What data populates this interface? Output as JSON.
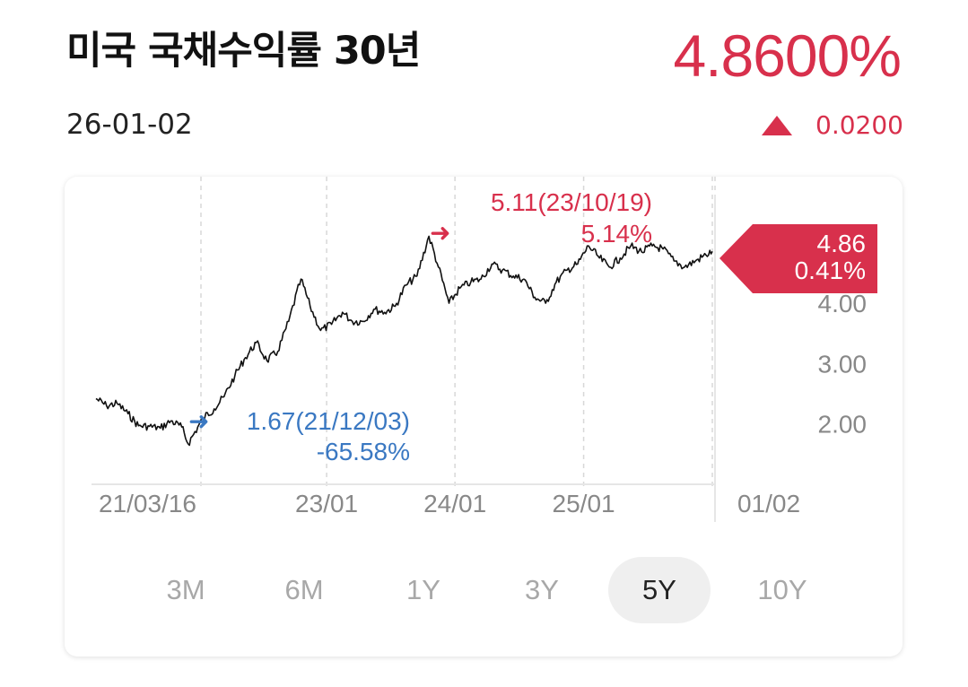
{
  "header": {
    "title": "미국 국채수익률 30년",
    "date": "26-01-02",
    "price": "4.8600%",
    "change": "0.0200",
    "change_direction": "up",
    "accent_color": "#d8304c"
  },
  "chart_data": {
    "type": "line",
    "x_tick_labels": [
      "21/03/16",
      "23/01",
      "24/01",
      "25/01",
      "01/02"
    ],
    "y_tick_labels": [
      "4.00",
      "3.00",
      "2.00"
    ],
    "ylim": [
      1.0,
      5.8
    ],
    "grid": "dashed vertical lines at x ticks",
    "series": [
      {
        "color": "#111111",
        "points": [
          [
            "2021-03-16",
            2.42
          ],
          [
            "2021-04-15",
            2.3
          ],
          [
            "2021-05-15",
            2.34
          ],
          [
            "2021-06-15",
            2.17
          ],
          [
            "2021-07-15",
            1.97
          ],
          [
            "2021-08-15",
            1.96
          ],
          [
            "2021-09-15",
            1.93
          ],
          [
            "2021-10-15",
            2.05
          ],
          [
            "2021-11-15",
            1.95
          ],
          [
            "2021-12-03",
            1.67
          ],
          [
            "2022-01-15",
            2.1
          ],
          [
            "2022-02-15",
            2.25
          ],
          [
            "2022-03-15",
            2.45
          ],
          [
            "2022-04-15",
            2.8
          ],
          [
            "2022-05-15",
            3.1
          ],
          [
            "2022-06-15",
            3.35
          ],
          [
            "2022-07-15",
            3.05
          ],
          [
            "2022-08-15",
            3.2
          ],
          [
            "2022-09-15",
            3.7
          ],
          [
            "2022-10-20",
            4.4
          ],
          [
            "2022-11-15",
            3.95
          ],
          [
            "2022-12-15",
            3.55
          ],
          [
            "2023-01-15",
            3.65
          ],
          [
            "2023-02-15",
            3.85
          ],
          [
            "2023-03-15",
            3.7
          ],
          [
            "2023-04-15",
            3.7
          ],
          [
            "2023-05-15",
            3.9
          ],
          [
            "2023-06-15",
            3.85
          ],
          [
            "2023-07-15",
            3.95
          ],
          [
            "2023-08-15",
            4.3
          ],
          [
            "2023-09-15",
            4.45
          ],
          [
            "2023-10-19",
            5.11
          ],
          [
            "2023-11-15",
            4.6
          ],
          [
            "2023-12-15",
            4.0
          ],
          [
            "2024-01-15",
            4.25
          ],
          [
            "2024-02-15",
            4.35
          ],
          [
            "2024-03-15",
            4.4
          ],
          [
            "2024-04-15",
            4.65
          ],
          [
            "2024-05-15",
            4.55
          ],
          [
            "2024-06-15",
            4.45
          ],
          [
            "2024-07-15",
            4.4
          ],
          [
            "2024-08-15",
            4.1
          ],
          [
            "2024-09-15",
            4.0
          ],
          [
            "2024-10-15",
            4.35
          ],
          [
            "2024-11-15",
            4.55
          ],
          [
            "2024-12-15",
            4.65
          ],
          [
            "2025-01-15",
            4.95
          ],
          [
            "2025-02-15",
            4.75
          ],
          [
            "2025-03-15",
            4.6
          ],
          [
            "2025-04-15",
            4.75
          ],
          [
            "2025-05-15",
            4.95
          ],
          [
            "2025-06-15",
            4.85
          ],
          [
            "2025-07-15",
            4.95
          ],
          [
            "2025-08-15",
            4.9
          ],
          [
            "2025-09-15",
            4.7
          ],
          [
            "2025-10-15",
            4.6
          ],
          [
            "2025-11-15",
            4.7
          ],
          [
            "2025-12-15",
            4.8
          ],
          [
            "2026-01-02",
            4.86
          ]
        ]
      }
    ],
    "annotations": {
      "high": {
        "label": "5.11(23/10/19)",
        "pct": "5.14%",
        "color": "#d8304c"
      },
      "low": {
        "label": "1.67(21/12/03)",
        "pct": "-65.58%",
        "color": "#3a78c2"
      },
      "current": {
        "value": "4.86",
        "pct": "0.41%",
        "color": "#d8304c"
      }
    }
  },
  "periods": {
    "items": [
      "3M",
      "6M",
      "1Y",
      "3Y",
      "5Y",
      "10Y"
    ],
    "selected": "5Y"
  }
}
